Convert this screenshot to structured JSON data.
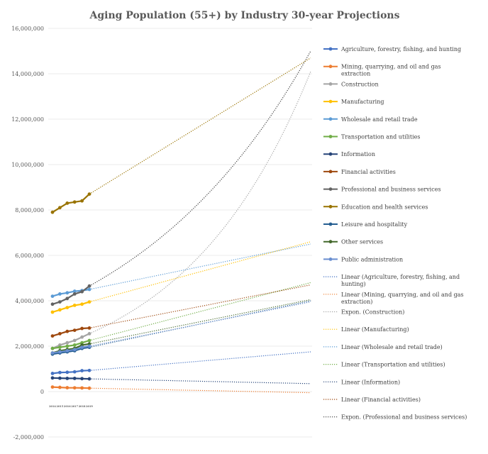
{
  "chart_data": {
    "type": "line",
    "title": "Aging Population (55+) by Industry 30-year Projections",
    "x": [
      "2014",
      "2015",
      "2016",
      "2017",
      "2018",
      "2019"
    ],
    "ylim": [
      -2000000,
      16000000
    ],
    "yticks": [
      "-2,000,000",
      "0",
      "2,000,000",
      "4,000,000",
      "6,000,000",
      "8,000,000",
      "10,000,000",
      "12,000,000",
      "14,000,000",
      "16,000,000"
    ],
    "grid": true,
    "legend_position": "right",
    "projection_end_index": 35,
    "series": [
      {
        "name": "Agriculture, forestry, fishing, and hunting",
        "color": "#4472c4",
        "values": [
          800000,
          840000,
          850000,
          870000,
          920000,
          930000
        ]
      },
      {
        "name": "Mining, quarrying, and oil and gas extraction",
        "color": "#ed7d31",
        "values": [
          200000,
          185000,
          170000,
          165000,
          160000,
          150000
        ]
      },
      {
        "name": "Construction",
        "color": "#a5a5a5",
        "values": [
          1900000,
          2050000,
          2150000,
          2250000,
          2400000,
          2550000
        ]
      },
      {
        "name": "Manufacturing",
        "color": "#ffc000",
        "values": [
          3500000,
          3600000,
          3700000,
          3800000,
          3850000,
          3950000
        ]
      },
      {
        "name": "Wholesale and retail trade",
        "color": "#5b9bd5",
        "values": [
          4200000,
          4300000,
          4350000,
          4420000,
          4450000,
          4500000
        ]
      },
      {
        "name": "Transportation and utilities",
        "color": "#70ad47",
        "values": [
          1900000,
          1950000,
          2000000,
          2050000,
          2150000,
          2250000
        ]
      },
      {
        "name": "Information",
        "color": "#264478",
        "values": [
          600000,
          590000,
          580000,
          580000,
          570000,
          560000
        ]
      },
      {
        "name": "Financial activities",
        "color": "#9e480e",
        "values": [
          2450000,
          2550000,
          2650000,
          2700000,
          2780000,
          2800000
        ]
      },
      {
        "name": "Professional and business services",
        "color": "#636363",
        "values": [
          3850000,
          3950000,
          4100000,
          4300000,
          4400000,
          4650000
        ]
      },
      {
        "name": "Education and health services",
        "color": "#997300",
        "values": [
          7900000,
          8100000,
          8300000,
          8350000,
          8400000,
          8700000
        ]
      },
      {
        "name": "Leisure and hospitality",
        "color": "#255e91",
        "values": [
          1650000,
          1700000,
          1750000,
          1800000,
          1900000,
          1950000
        ]
      },
      {
        "name": "Other services",
        "color": "#43682b",
        "values": [
          1700000,
          1800000,
          1850000,
          1900000,
          2050000,
          2100000
        ]
      },
      {
        "name": "Public administration",
        "color": "#698ed0",
        "values": [
          1700000,
          1750000,
          1800000,
          1850000,
          1950000,
          2000000
        ]
      }
    ],
    "trendlines": [
      {
        "name": "Linear (Agriculture, forestry, fishing, and hunting)",
        "color": "#4472c4",
        "type": "linear",
        "start": 930000,
        "end": 1750000
      },
      {
        "name": "Linear (Mining, quarrying, and oil and gas extraction)",
        "color": "#ed7d31",
        "type": "linear",
        "start": 150000,
        "end": -50000
      },
      {
        "name": "Expon. (Construction)",
        "color": "#a5a5a5",
        "type": "exponential",
        "start": 2550000,
        "end": 14100000
      },
      {
        "name": "Linear (Manufacturing)",
        "color": "#ffc000",
        "type": "linear",
        "start": 3950000,
        "end": 6600000
      },
      {
        "name": "Linear (Wholesale and retail trade)",
        "color": "#5b9bd5",
        "type": "linear",
        "start": 4500000,
        "end": 6500000
      },
      {
        "name": "Linear (Transportation and utilities)",
        "color": "#70ad47",
        "type": "linear",
        "start": 2250000,
        "end": 4800000
      },
      {
        "name": "Linear (Information)",
        "color": "#264478",
        "type": "linear",
        "start": 560000,
        "end": 350000
      },
      {
        "name": "Linear (Financial activities)",
        "color": "#9e480e",
        "type": "linear",
        "start": 2800000,
        "end": 4700000
      },
      {
        "name": "Expon. (Professional and business services)",
        "color": "#404040",
        "type": "exponential",
        "start": 4650000,
        "end": 15000000
      },
      {
        "name": "",
        "color": "#997300",
        "type": "linear",
        "start": 8700000,
        "end": 14700000
      },
      {
        "name": "",
        "color": "#255e91",
        "type": "linear",
        "start": 1950000,
        "end": 4000000
      },
      {
        "name": "",
        "color": "#43682b",
        "type": "linear",
        "start": 2100000,
        "end": 4050000
      },
      {
        "name": "",
        "color": "#698ed0",
        "type": "linear",
        "start": 2000000,
        "end": 3950000
      }
    ]
  }
}
